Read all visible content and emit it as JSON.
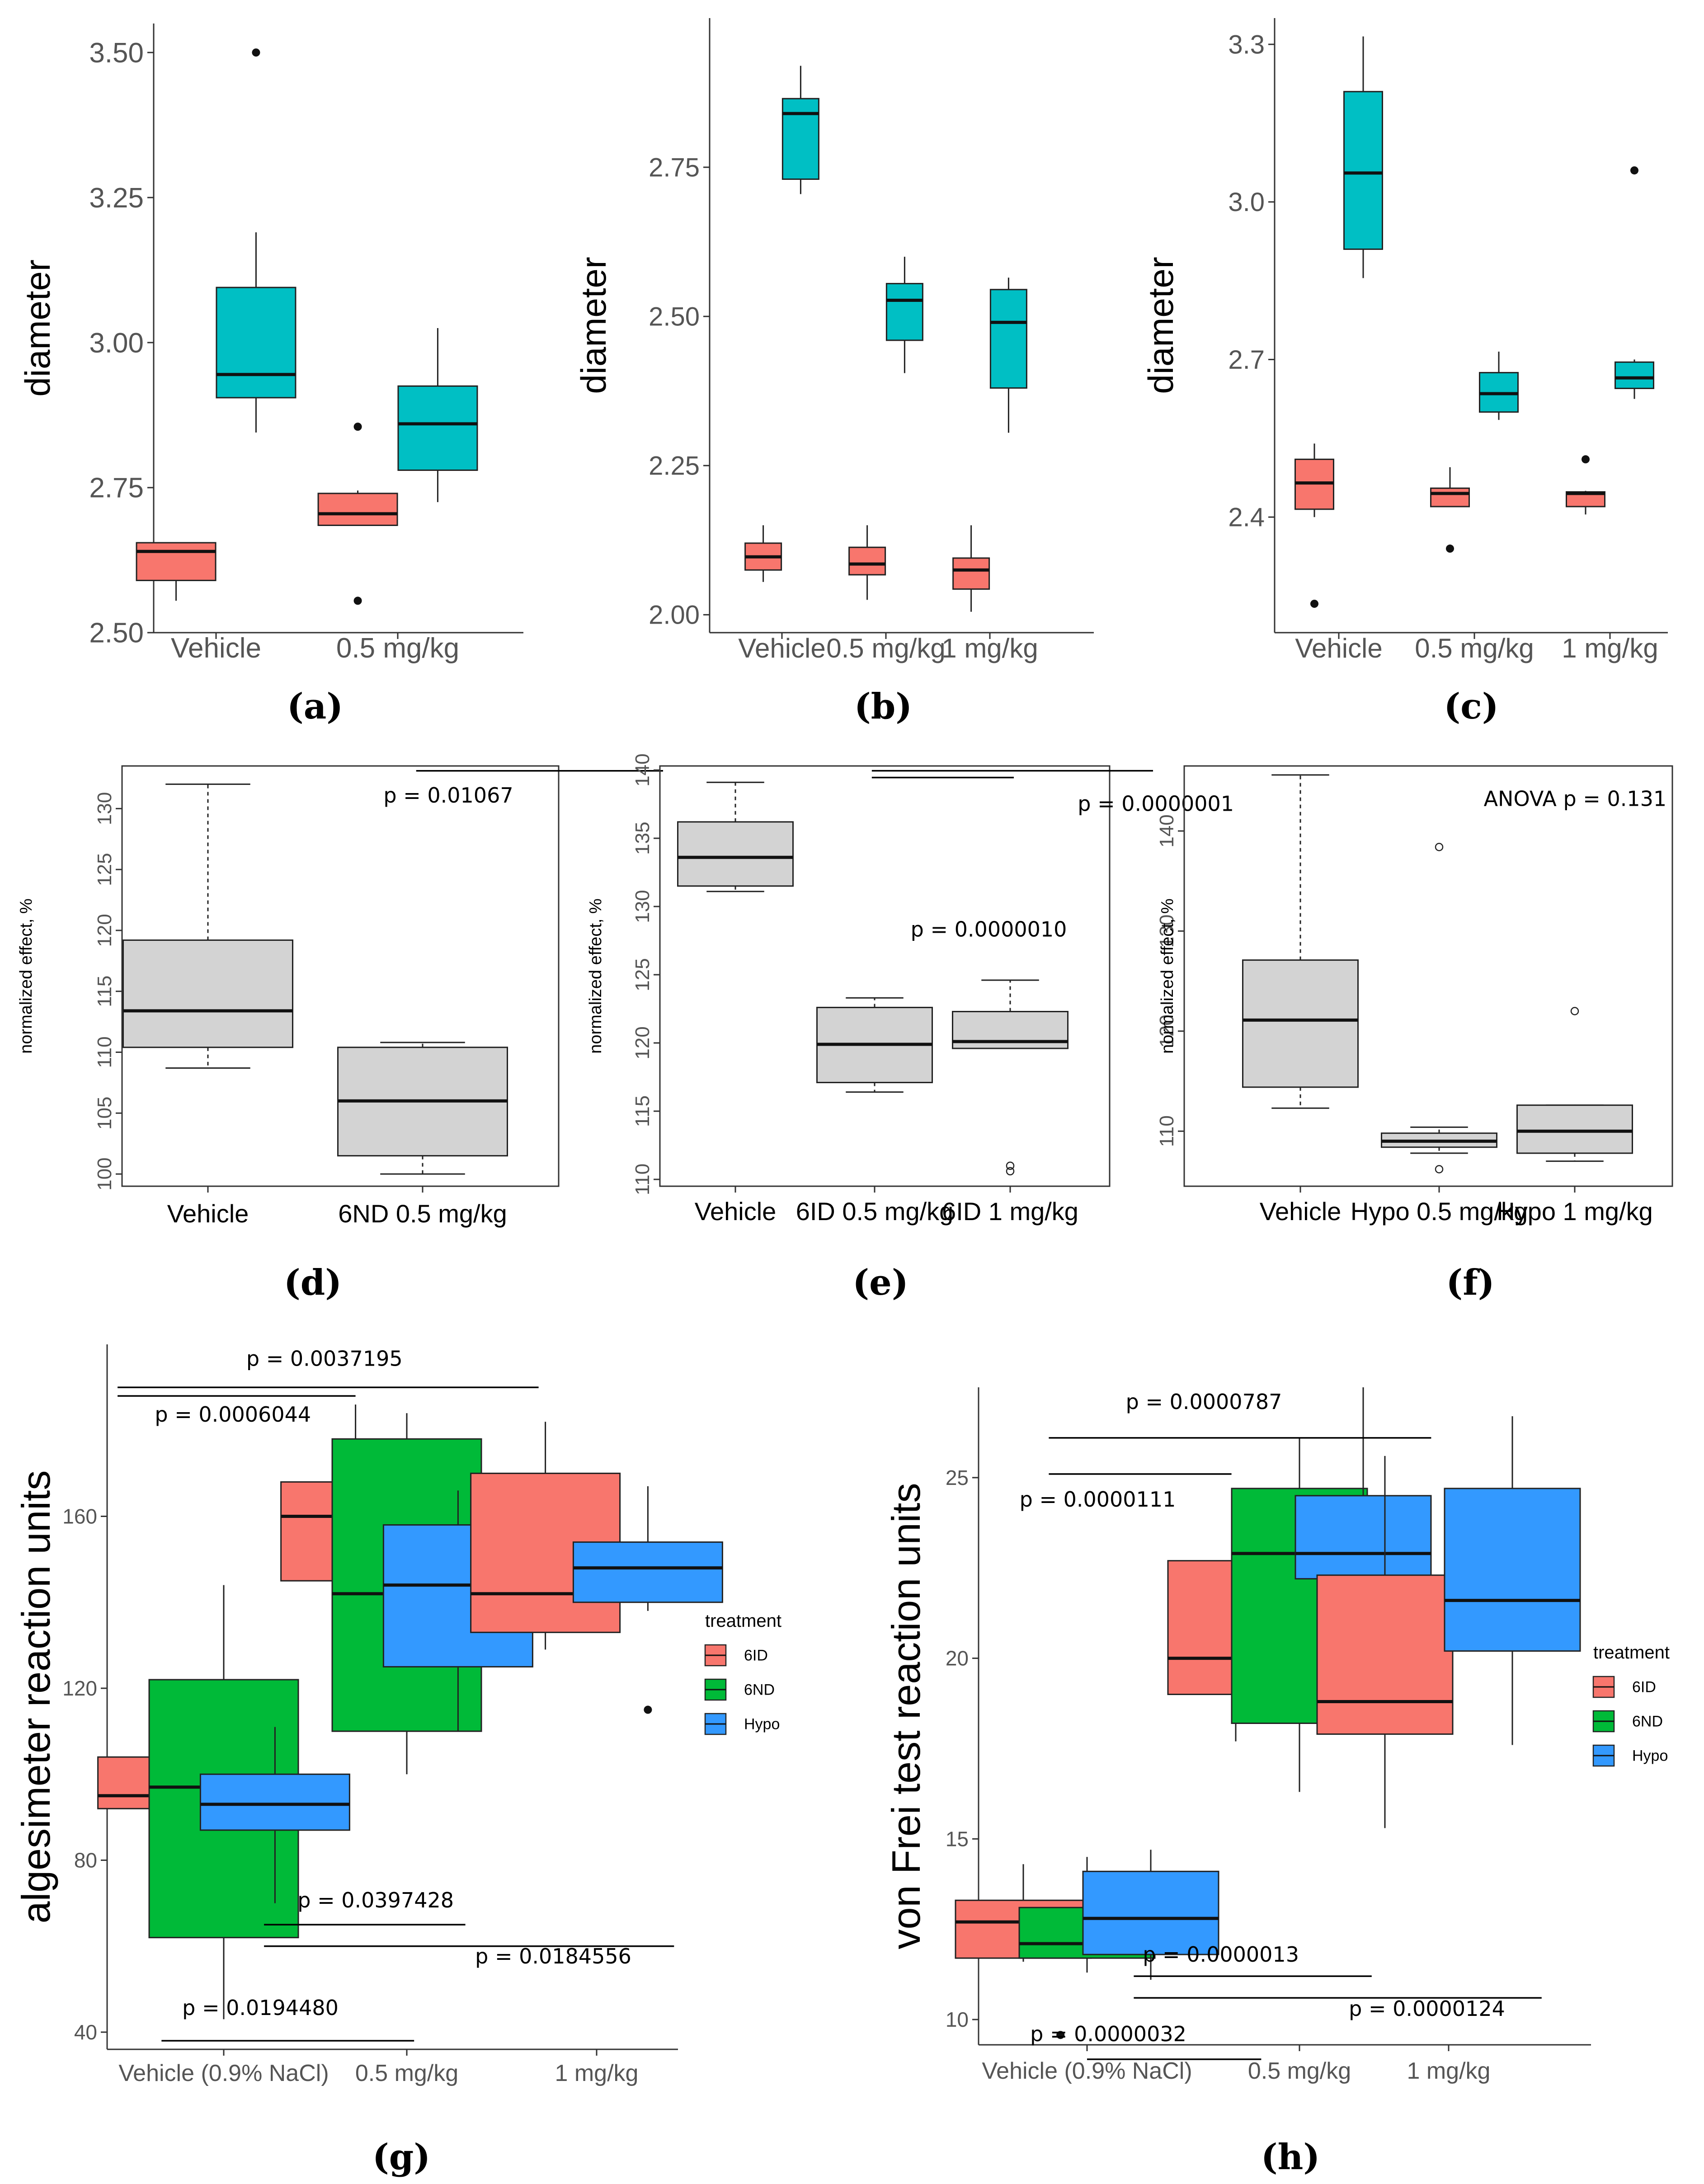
{
  "colors": {
    "red": "#F8766D",
    "teal": "#00BFC4",
    "green": "#00BA38",
    "blue": "#3399FF",
    "grey": "#D3D3D3",
    "axis": "#333333",
    "tick_text": "#555555"
  },
  "chart_data": [
    {
      "id": "a",
      "panel_label": "(a)",
      "type": "box",
      "style": "ggplot",
      "ylabel": "diameter",
      "ylim": [
        2.5,
        3.55
      ],
      "yticks": [
        2.5,
        2.75,
        3.0,
        3.25,
        3.5
      ],
      "ytick_labels": [
        "2.50",
        "2.75",
        "3.00",
        "3.25",
        "3.50"
      ],
      "categories": [
        "Vehicle",
        "0.5 mg/kg"
      ],
      "boxes": [
        {
          "cat": 0,
          "offset": -0.22,
          "fill": "red",
          "q1": 2.59,
          "median": 2.64,
          "q3": 2.655,
          "wlo": 2.555,
          "whi": 2.655,
          "outliers": []
        },
        {
          "cat": 0,
          "offset": 0.22,
          "fill": "teal",
          "q1": 2.905,
          "median": 2.945,
          "q3": 3.095,
          "wlo": 2.845,
          "whi": 3.19,
          "outliers": [
            3.5
          ]
        },
        {
          "cat": 1,
          "offset": -0.22,
          "fill": "red",
          "q1": 2.685,
          "median": 2.705,
          "q3": 2.74,
          "wlo": 2.685,
          "whi": 2.745,
          "outliers": [
            2.855,
            2.555
          ]
        },
        {
          "cat": 1,
          "offset": 0.22,
          "fill": "teal",
          "q1": 2.78,
          "median": 2.86,
          "q3": 2.925,
          "wlo": 2.725,
          "whi": 3.025,
          "outliers": []
        }
      ]
    },
    {
      "id": "b",
      "panel_label": "(b)",
      "type": "box",
      "style": "ggplot",
      "ylabel": "diameter",
      "ylim": [
        1.97,
        3.0
      ],
      "yticks": [
        2.0,
        2.25,
        2.5,
        2.75
      ],
      "ytick_labels": [
        "2.00",
        "2.25",
        "2.50",
        "2.75"
      ],
      "categories": [
        "Vehicle",
        "0.5 mg/kg",
        "1 mg/kg"
      ],
      "boxes": [
        {
          "cat": 0,
          "offset": -0.18,
          "fill": "red",
          "q1": 2.075,
          "median": 2.097,
          "q3": 2.12,
          "wlo": 2.055,
          "whi": 2.15,
          "outliers": []
        },
        {
          "cat": 0,
          "offset": 0.18,
          "fill": "teal",
          "q1": 2.73,
          "median": 2.84,
          "q3": 2.865,
          "wlo": 2.705,
          "whi": 2.92,
          "outliers": []
        },
        {
          "cat": 1,
          "offset": -0.18,
          "fill": "red",
          "q1": 2.067,
          "median": 2.085,
          "q3": 2.113,
          "wlo": 2.025,
          "whi": 2.15,
          "outliers": []
        },
        {
          "cat": 1,
          "offset": 0.18,
          "fill": "teal",
          "q1": 2.46,
          "median": 2.527,
          "q3": 2.555,
          "wlo": 2.405,
          "whi": 2.6,
          "outliers": []
        },
        {
          "cat": 2,
          "offset": -0.18,
          "fill": "red",
          "q1": 2.043,
          "median": 2.075,
          "q3": 2.095,
          "wlo": 2.005,
          "whi": 2.15,
          "outliers": []
        },
        {
          "cat": 2,
          "offset": 0.18,
          "fill": "teal",
          "q1": 2.38,
          "median": 2.49,
          "q3": 2.545,
          "wlo": 2.305,
          "whi": 2.565,
          "outliers": []
        }
      ]
    },
    {
      "id": "c",
      "panel_label": "(c)",
      "type": "box",
      "style": "ggplot",
      "ylabel": "diameter",
      "ylim": [
        2.18,
        3.35
      ],
      "yticks": [
        2.4,
        2.7,
        3.0,
        3.3
      ],
      "ytick_labels": [
        "2.4",
        "2.7",
        "3.0",
        "3.3"
      ],
      "categories": [
        "Vehicle",
        "0.5 mg/kg",
        "1 mg/kg"
      ],
      "boxes": [
        {
          "cat": 0,
          "offset": -0.18,
          "fill": "red",
          "q1": 2.415,
          "median": 2.465,
          "q3": 2.51,
          "wlo": 2.4,
          "whi": 2.54,
          "outliers": [
            2.235
          ]
        },
        {
          "cat": 0,
          "offset": 0.18,
          "fill": "teal",
          "q1": 2.91,
          "median": 3.055,
          "q3": 3.21,
          "wlo": 2.855,
          "whi": 3.315,
          "outliers": []
        },
        {
          "cat": 1,
          "offset": -0.18,
          "fill": "red",
          "q1": 2.42,
          "median": 2.445,
          "q3": 2.455,
          "wlo": 2.42,
          "whi": 2.495,
          "outliers": [
            2.34
          ]
        },
        {
          "cat": 1,
          "offset": 0.18,
          "fill": "teal",
          "q1": 2.6,
          "median": 2.635,
          "q3": 2.675,
          "wlo": 2.585,
          "whi": 2.715,
          "outliers": []
        },
        {
          "cat": 2,
          "offset": -0.18,
          "fill": "red",
          "q1": 2.42,
          "median": 2.445,
          "q3": 2.448,
          "wlo": 2.405,
          "whi": 2.45,
          "outliers": [
            2.51
          ]
        },
        {
          "cat": 2,
          "offset": 0.18,
          "fill": "teal",
          "q1": 2.645,
          "median": 2.665,
          "q3": 2.695,
          "wlo": 2.625,
          "whi": 2.7,
          "outliers": [
            3.06
          ]
        }
      ]
    },
    {
      "id": "d",
      "panel_label": "(d)",
      "type": "box",
      "style": "base",
      "ylabel": "normalized effect, %",
      "ylim": [
        99,
        133.5
      ],
      "yticks": [
        100,
        105,
        110,
        115,
        120,
        125,
        130
      ],
      "ytick_labels": [
        "100",
        "105",
        "110",
        "115",
        "120",
        "125",
        "130"
      ],
      "categories": [
        "Vehicle",
        "6ND 0.5 mg/kg"
      ],
      "boxes": [
        {
          "cat": 0,
          "offset": 0,
          "fill": "grey",
          "q1": 110.4,
          "median": 113.4,
          "q3": 119.2,
          "wlo": 108.7,
          "whi": 132.0,
          "outliers": []
        },
        {
          "cat": 1,
          "offset": 0,
          "fill": "grey",
          "q1": 101.5,
          "median": 106.0,
          "q3": 110.4,
          "wlo": 100.0,
          "whi": 110.8,
          "outliers": []
        }
      ],
      "annotations": [
        {
          "text": "p = 0.01067",
          "cat_pos": 1.12,
          "y": 130.5,
          "bar": [
            0.97,
            2.12,
            133.1
          ]
        }
      ]
    },
    {
      "id": "e",
      "panel_label": "(e)",
      "type": "box",
      "style": "base",
      "ylabel": "normalized effect, %",
      "ylim": [
        109.5,
        140.3
      ],
      "yticks": [
        110,
        115,
        120,
        125,
        130,
        135,
        140
      ],
      "ytick_labels": [
        "110",
        "115",
        "120",
        "125",
        "130",
        "135",
        "140"
      ],
      "categories": [
        "Vehicle",
        "6ID 0.5 mg/kg",
        "6ID 1 mg/kg"
      ],
      "boxes": [
        {
          "cat": 0,
          "offset": 0,
          "fill": "grey",
          "q1": 131.5,
          "median": 133.6,
          "q3": 136.2,
          "wlo": 131.1,
          "whi": 139.1,
          "outliers": []
        },
        {
          "cat": 1,
          "offset": 0,
          "fill": "grey",
          "q1": 117.1,
          "median": 119.9,
          "q3": 122.6,
          "wlo": 116.4,
          "whi": 123.3,
          "outliers": []
        },
        {
          "cat": 2,
          "offset": 0,
          "fill": "grey",
          "q1": 119.6,
          "median": 120.1,
          "q3": 122.3,
          "wlo": 119.6,
          "whi": 124.6,
          "outliers": [
            111.0,
            110.6
          ]
        }
      ],
      "annotations": [
        {
          "text": "p  = 0.0000001",
          "cat_pos": 3.02,
          "y": 137.0,
          "bar": [
            0.98,
            3.0,
            139.95
          ]
        },
        {
          "text": "p  = 0.0000010",
          "cat_pos": 1.82,
          "y": 127.8,
          "bar": [
            0.98,
            2.0,
            139.45
          ]
        }
      ]
    },
    {
      "id": "f",
      "panel_label": "(f)",
      "type": "box",
      "style": "base",
      "ylabel": "normalized effect, %",
      "ylim": [
        104.5,
        146.5
      ],
      "yticks": [
        110,
        120,
        130,
        140
      ],
      "ytick_labels": [
        "110",
        "120",
        "130",
        "140"
      ],
      "categories": [
        "Vehicle",
        "Hypo 0.5 mg/kg",
        "Hypo 1 mg/kg"
      ],
      "boxes": [
        {
          "cat": 0,
          "offset": 0,
          "fill": "grey",
          "q1": 114.4,
          "median": 121.1,
          "q3": 127.1,
          "wlo": 112.3,
          "whi": 145.6,
          "outliers": []
        },
        {
          "cat": 1,
          "offset": 0,
          "fill": "grey",
          "q1": 108.4,
          "median": 109.0,
          "q3": 109.8,
          "wlo": 107.8,
          "whi": 110.4,
          "outliers": [
            138.4,
            106.2
          ]
        },
        {
          "cat": 2,
          "offset": 0,
          "fill": "grey",
          "q1": 107.8,
          "median": 110.0,
          "q3": 112.6,
          "wlo": 107.0,
          "whi": 112.6,
          "outliers": [
            122.0
          ]
        }
      ],
      "annotations": [
        {
          "text": "ANOVA p  = 0.131",
          "cat_pos": 1.98,
          "y": 142.5,
          "bar": null
        }
      ]
    },
    {
      "id": "g",
      "panel_label": "(g)",
      "type": "box",
      "style": "ggplot",
      "ylabel": "algesimeter reaction units",
      "ylim": [
        36,
        200
      ],
      "yticks": [
        40,
        80,
        120,
        160
      ],
      "ytick_labels": [
        "40",
        "80",
        "120",
        "160"
      ],
      "categories": [
        "Vehicle (0.9% NaCl)",
        "0.5 mg/kg",
        "1 mg/kg"
      ],
      "legend": {
        "title": "treatment",
        "items": [
          {
            "label": "6ID",
            "fill": "red"
          },
          {
            "label": "6ND",
            "fill": "green"
          },
          {
            "label": "Hypo",
            "fill": "blue"
          }
        ]
      },
      "boxes": [
        {
          "cat": 0,
          "offset": -0.28,
          "fill": "red",
          "q1": 92,
          "median": 95,
          "q3": 104,
          "wlo": 83,
          "whi": 120,
          "outliers": []
        },
        {
          "cat": 0,
          "offset": 0.0,
          "fill": "green",
          "q1": 62,
          "median": 97,
          "q3": 122,
          "wlo": 43,
          "whi": 144,
          "outliers": []
        },
        {
          "cat": 0,
          "offset": 0.28,
          "fill": "blue",
          "q1": 87,
          "median": 93,
          "q3": 100,
          "wlo": 70,
          "whi": 111,
          "outliers": []
        },
        {
          "cat": 1,
          "offset": -0.28,
          "fill": "red",
          "q1": 145,
          "median": 160,
          "q3": 168,
          "wlo": 120,
          "whi": 186,
          "outliers": []
        },
        {
          "cat": 1,
          "offset": 0.0,
          "fill": "green",
          "q1": 110,
          "median": 142,
          "q3": 178,
          "wlo": 100,
          "whi": 184,
          "outliers": []
        },
        {
          "cat": 1,
          "offset": 0.28,
          "fill": "blue",
          "q1": 125,
          "median": 144,
          "q3": 158,
          "wlo": 110,
          "whi": 166,
          "outliers": []
        },
        {
          "cat": 2,
          "offset": -0.28,
          "fill": "red",
          "q1": 133,
          "median": 142,
          "q3": 170,
          "wlo": 129,
          "whi": 182,
          "outliers": []
        },
        {
          "cat": 2,
          "offset": 0.28,
          "fill": "blue",
          "q1": 140,
          "median": 148,
          "q3": 154,
          "wlo": 138,
          "whi": 167,
          "outliers": [
            115
          ]
        }
      ],
      "annotations": [
        {
          "text": "p = 0.0037195",
          "cat_pos": 0.55,
          "y": 195,
          "bar": [
            -0.58,
            1.72,
            190
          ]
        },
        {
          "text": "p = 0.0006044",
          "cat_pos": 0.05,
          "y": 182,
          "bar": [
            -0.58,
            0.72,
            188
          ]
        },
        {
          "text": "p = 0.0397428",
          "cat_pos": 0.83,
          "y": 69,
          "bar": [
            0.22,
            1.32,
            65
          ]
        },
        {
          "text": "p = 0.0184556",
          "cat_pos": 1.8,
          "y": 56,
          "bar": [
            0.22,
            2.46,
            60
          ]
        },
        {
          "text": "p = 0.0194480",
          "cat_pos": 0.2,
          "y": 44,
          "bar": [
            -0.34,
            1.04,
            38
          ]
        }
      ]
    },
    {
      "id": "h",
      "panel_label": "(h)",
      "type": "box",
      "style": "ggplot",
      "ylabel": "von Frei test reaction units",
      "ylim": [
        9.3,
        27.5
      ],
      "yticks": [
        10,
        15,
        20,
        25
      ],
      "ytick_labels": [
        "10",
        "15",
        "20",
        "25"
      ],
      "categories": [
        "Vehicle (0.9% NaCl)",
        "0.5 mg/kg",
        "1 mg/kg"
      ],
      "legend": {
        "title": "treatment",
        "items": [
          {
            "label": "6ID",
            "fill": "red"
          },
          {
            "label": "6ND",
            "fill": "green"
          },
          {
            "label": "Hypo",
            "fill": "blue"
          }
        ]
      },
      "boxes": [
        {
          "cat": 0,
          "offset": -0.3,
          "fill": "red",
          "q1": 11.7,
          "median": 12.7,
          "q3": 13.3,
          "wlo": 11.6,
          "whi": 14.3,
          "outliers": []
        },
        {
          "cat": 0,
          "offset": 0.0,
          "fill": "green",
          "q1": 11.7,
          "median": 12.1,
          "q3": 13.1,
          "wlo": 11.3,
          "whi": 14.5,
          "outliers": []
        },
        {
          "cat": 0,
          "offset": 0.3,
          "fill": "blue",
          "q1": 11.8,
          "median": 12.8,
          "q3": 14.1,
          "wlo": 11.1,
          "whi": 14.7,
          "outliers": []
        },
        {
          "cat": 1,
          "offset": -0.3,
          "fill": "red",
          "q1": 19.0,
          "median": 20.0,
          "q3": 22.7,
          "wlo": 17.7,
          "whi": 24.3,
          "outliers": []
        },
        {
          "cat": 1,
          "offset": 0.0,
          "fill": "green",
          "q1": 18.2,
          "median": 22.9,
          "q3": 24.7,
          "wlo": 16.3,
          "whi": 26.1,
          "outliers": []
        },
        {
          "cat": 1,
          "offset": 0.3,
          "fill": "blue",
          "q1": 22.2,
          "median": 22.9,
          "q3": 24.5,
          "wlo": 18.7,
          "whi": 27.5,
          "outliers": [
            18.7
          ]
        },
        {
          "cat": 2,
          "offset": -0.3,
          "fill": "red",
          "q1": 17.9,
          "median": 18.8,
          "q3": 22.3,
          "wlo": 15.3,
          "whi": 25.6,
          "outliers": []
        },
        {
          "cat": 2,
          "offset": 0.3,
          "fill": "blue",
          "q1": 20.2,
          "median": 21.6,
          "q3": 24.7,
          "wlo": 17.6,
          "whi": 26.7,
          "outliers": []
        }
      ],
      "annotations": [
        {
          "text": "p = 0.0000787",
          "cat_pos": 0.55,
          "y": 26.9,
          "bar": [
            -0.18,
            1.62,
            26.1
          ]
        },
        {
          "text": "p = 0.0000111",
          "cat_pos": 0.05,
          "y": 24.2,
          "bar": [
            -0.18,
            0.68,
            25.1
          ]
        },
        {
          "text": "p = 0.0000013",
          "cat_pos": 0.63,
          "y": 11.6,
          "bar": [
            0.22,
            1.34,
            11.2
          ]
        },
        {
          "text": "p = 0.0000124",
          "cat_pos": 1.6,
          "y": 10.1,
          "bar": [
            0.22,
            2.14,
            10.6
          ]
        },
        {
          "text": "p = 0.0000032",
          "cat_pos": 0.1,
          "y": 9.4,
          "bar": [
            0.0,
            0.82,
            8.9
          ],
          "dot": true
        }
      ]
    }
  ]
}
